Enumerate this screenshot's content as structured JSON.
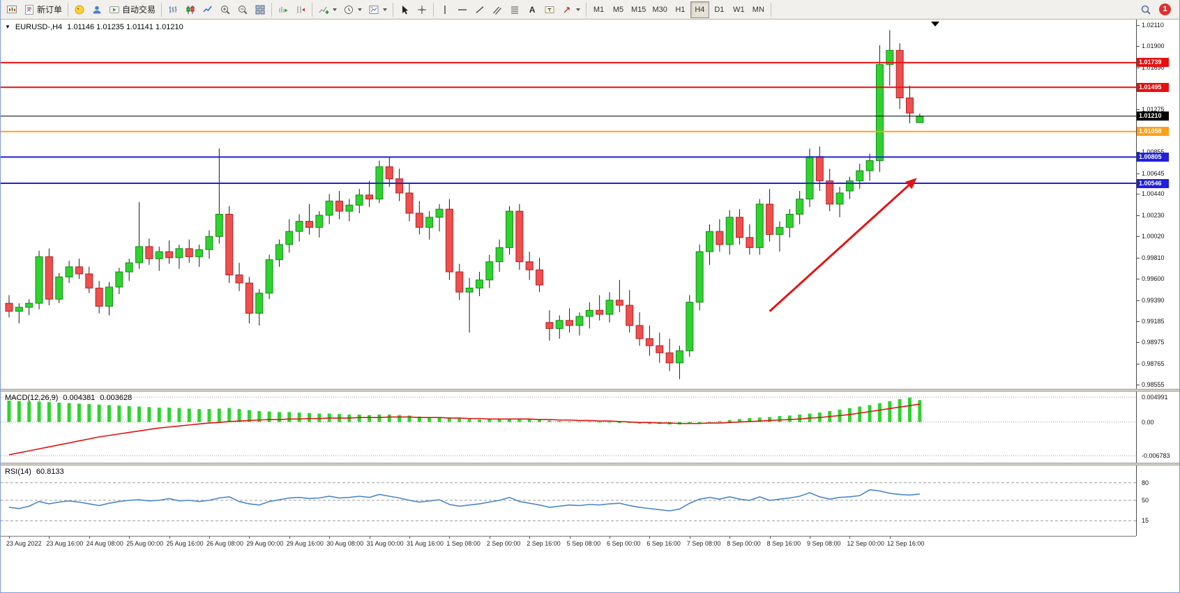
{
  "toolbar": {
    "new_order": "新订单",
    "auto_trading": "自动交易",
    "timeframe_labels": [
      "M1",
      "M5",
      "M15",
      "M30",
      "H1",
      "H4",
      "D1",
      "W1",
      "MN"
    ],
    "active_timeframe": "H4",
    "notification_badge": "1"
  },
  "chart_header": {
    "symbol_period": "EURUSD-,H4",
    "ohlc_text": "1.01146 1.01235 1.01141 1.01210"
  },
  "macd_header": {
    "label": "MACD(12,26,9)",
    "main": "0.004381",
    "signal": "0.003628"
  },
  "rsi_header": {
    "label": "RSI(14)",
    "value": "60.8133"
  },
  "chart_data": {
    "type": "candlestick",
    "symbol": "EURUSD-,H4",
    "ylim": [
      0.98555,
      1.0211
    ],
    "y_ticks": [
      1.0211,
      1.019,
      1.0169,
      1.0148,
      1.01275,
      1.01065,
      1.00855,
      1.00645,
      1.0044,
      1.0023,
      1.0002,
      0.9981,
      0.996,
      0.9939,
      0.99185,
      0.98975,
      0.98765,
      0.98555
    ],
    "x_labels": [
      "23 Aug 2022",
      "23 Aug 16:00",
      "24 Aug 08:00",
      "25 Aug 00:00",
      "25 Aug 16:00",
      "26 Aug 08:00",
      "29 Aug 00:00",
      "29 Aug 16:00",
      "30 Aug 08:00",
      "31 Aug 00:00",
      "31 Aug 16:00",
      "1 Sep 08:00",
      "2 Sep 00:00",
      "2 Sep 16:00",
      "5 Sep 08:00",
      "6 Sep 00:00",
      "6 Sep 16:00",
      "7 Sep 08:00",
      "8 Sep 00:00",
      "8 Sep 16:00",
      "9 Sep 08:00",
      "12 Sep 00:00",
      "12 Sep 16:00"
    ],
    "x_label_step": 4,
    "candles": [
      [
        0.9936,
        0.9944,
        0.9922,
        0.9928
      ],
      [
        0.9928,
        0.9936,
        0.9916,
        0.9932
      ],
      [
        0.9932,
        0.994,
        0.9924,
        0.9936
      ],
      [
        0.9936,
        0.9988,
        0.993,
        0.9982
      ],
      [
        0.9982,
        0.999,
        0.9934,
        0.994
      ],
      [
        0.994,
        0.9966,
        0.9936,
        0.9962
      ],
      [
        0.9962,
        0.9978,
        0.9956,
        0.9972
      ],
      [
        0.9972,
        0.998,
        0.996,
        0.9965
      ],
      [
        0.9965,
        0.9972,
        0.9946,
        0.9951
      ],
      [
        0.9951,
        0.9958,
        0.9926,
        0.9933
      ],
      [
        0.9933,
        0.9957,
        0.9924,
        0.9952
      ],
      [
        0.9952,
        0.9971,
        0.9945,
        0.9967
      ],
      [
        0.9967,
        0.998,
        0.9958,
        0.9976
      ],
      [
        0.9976,
        1.0036,
        0.997,
        0.9992
      ],
      [
        0.9992,
        1.0,
        0.9974,
        0.998
      ],
      [
        0.998,
        0.9992,
        0.9968,
        0.9987
      ],
      [
        0.9987,
        0.9998,
        0.9975,
        0.9981
      ],
      [
        0.9981,
        0.9994,
        0.997,
        0.999
      ],
      [
        0.999,
        0.9999,
        0.9976,
        0.9982
      ],
      [
        0.9982,
        0.9994,
        0.9972,
        0.9989
      ],
      [
        0.9989,
        1.0008,
        0.998,
        1.0002
      ],
      [
        1.0002,
        1.0089,
        0.9995,
        1.0024
      ],
      [
        1.0024,
        1.0032,
        0.9956,
        0.9964
      ],
      [
        0.9964,
        0.9976,
        0.9948,
        0.9956
      ],
      [
        0.9956,
        0.9962,
        0.9916,
        0.9926
      ],
      [
        0.9926,
        0.995,
        0.9914,
        0.9946
      ],
      [
        0.9946,
        0.9984,
        0.994,
        0.9979
      ],
      [
        0.9979,
        0.9999,
        0.9972,
        0.9994
      ],
      [
        0.9994,
        1.0019,
        0.9986,
        1.0007
      ],
      [
        1.0007,
        1.0024,
        0.9997,
        1.0017
      ],
      [
        1.0017,
        1.0034,
        1.0004,
        1.0011
      ],
      [
        1.0011,
        1.0027,
        1.0001,
        1.0023
      ],
      [
        1.0023,
        1.0044,
        1.0014,
        1.0037
      ],
      [
        1.0037,
        1.0047,
        1.0019,
        1.0027
      ],
      [
        1.0027,
        1.0039,
        1.0017,
        1.0033
      ],
      [
        1.0033,
        1.0049,
        1.0025,
        1.0043
      ],
      [
        1.0043,
        1.0057,
        1.0031,
        1.0039
      ],
      [
        1.0039,
        1.0077,
        1.0035,
        1.0071
      ],
      [
        1.0071,
        1.0081,
        1.0051,
        1.0059
      ],
      [
        1.0059,
        1.0069,
        1.0037,
        1.0045
      ],
      [
        1.0045,
        1.0055,
        1.0017,
        1.0025
      ],
      [
        1.0025,
        1.0037,
        1.0004,
        1.0011
      ],
      [
        1.0011,
        1.0027,
        0.9999,
        1.0021
      ],
      [
        1.0021,
        1.0034,
        1.0007,
        1.0029
      ],
      [
        1.0029,
        1.0039,
        0.9959,
        0.9967
      ],
      [
        0.9967,
        0.9975,
        0.9939,
        0.9947
      ],
      [
        0.9947,
        0.9961,
        0.9907,
        0.9951
      ],
      [
        0.9951,
        0.9967,
        0.9943,
        0.9959
      ],
      [
        0.9959,
        0.9984,
        0.9951,
        0.9977
      ],
      [
        0.9977,
        0.9999,
        0.9967,
        0.9991
      ],
      [
        0.9991,
        1.0032,
        0.9984,
        1.0027
      ],
      [
        1.0027,
        1.0034,
        0.9969,
        0.9977
      ],
      [
        0.9977,
        0.9987,
        0.9959,
        0.9969
      ],
      [
        0.9969,
        0.9981,
        0.9947,
        0.9954
      ],
      [
        0.9917,
        0.9929,
        0.9899,
        0.9911
      ],
      [
        0.9911,
        0.9924,
        0.9901,
        0.9919
      ],
      [
        0.9919,
        0.9931,
        0.9907,
        0.9914
      ],
      [
        0.9914,
        0.9927,
        0.9904,
        0.9923
      ],
      [
        0.9923,
        0.9937,
        0.9911,
        0.9929
      ],
      [
        0.9929,
        0.9944,
        0.9919,
        0.9925
      ],
      [
        0.9925,
        0.9947,
        0.9917,
        0.9939
      ],
      [
        0.9939,
        0.9959,
        0.9927,
        0.9934
      ],
      [
        0.9934,
        0.9949,
        0.9907,
        0.9914
      ],
      [
        0.9914,
        0.9927,
        0.9894,
        0.9901
      ],
      [
        0.9901,
        0.9914,
        0.9884,
        0.9894
      ],
      [
        0.9894,
        0.9907,
        0.9877,
        0.9887
      ],
      [
        0.9887,
        0.9901,
        0.9869,
        0.9877
      ],
      [
        0.9877,
        0.9894,
        0.9861,
        0.9889
      ],
      [
        0.9889,
        0.9944,
        0.9883,
        0.9937
      ],
      [
        0.9937,
        0.9994,
        0.9929,
        0.9987
      ],
      [
        0.9987,
        1.0014,
        0.9974,
        1.0007
      ],
      [
        1.0007,
        1.0019,
        0.9987,
        0.9994
      ],
      [
        0.9994,
        1.0028,
        0.9984,
        1.0021
      ],
      [
        1.0021,
        1.0029,
        0.9994,
        1.0001
      ],
      [
        1.0001,
        1.0014,
        0.9984,
        0.9991
      ],
      [
        0.9991,
        1.0039,
        0.9984,
        1.0034
      ],
      [
        1.0034,
        1.0049,
        0.9997,
        1.0004
      ],
      [
        1.0004,
        1.0017,
        0.9987,
        1.0011
      ],
      [
        1.0011,
        1.0029,
        1.0001,
        1.0024
      ],
      [
        1.0024,
        1.0047,
        1.0014,
        1.0039
      ],
      [
        1.0039,
        1.0089,
        1.0031,
        1.0081
      ],
      [
        1.0081,
        1.0091,
        1.0047,
        1.0057
      ],
      [
        1.0057,
        1.0069,
        1.0027,
        1.0034
      ],
      [
        1.0034,
        1.0051,
        1.0021,
        1.0045
      ],
      [
        1.0047,
        1.0061,
        1.0039,
        1.0057
      ],
      [
        1.0057,
        1.0074,
        1.0049,
        1.0067
      ],
      [
        1.0067,
        1.0084,
        1.0057,
        1.0077
      ],
      [
        1.0077,
        1.0191,
        1.0066,
        1.0172
      ],
      [
        1.0172,
        1.0206,
        1.0151,
        1.0186
      ],
      [
        1.0186,
        1.0193,
        1.0128,
        1.0139
      ],
      [
        1.0139,
        1.0151,
        1.0114,
        1.0124
      ],
      [
        1.01146,
        1.01235,
        1.01141,
        1.0121
      ]
    ],
    "price_lines": [
      {
        "price": 1.01739,
        "color": "#e80f0f",
        "width": 2,
        "badge": "1.01739"
      },
      {
        "price": 1.01495,
        "color": "#e80f0f",
        "width": 2,
        "badge": "1.01495"
      },
      {
        "price": 1.0121,
        "color": "#000000",
        "width": 1,
        "badge": "1.01210"
      },
      {
        "price": 1.01058,
        "color": "#ffa018",
        "width": 2,
        "badge": "1.01058"
      },
      {
        "price": 1.00805,
        "color": "#2020dd",
        "width": 2,
        "badge": "1.00805"
      },
      {
        "price": 1.00546,
        "color": "#2020dd",
        "width": 2,
        "badge": "1.00546"
      }
    ],
    "trend_arrow": {
      "from_index": 76,
      "from_price": 0.9928,
      "to_index": 90.5,
      "to_price": 1.0058,
      "color": "#e41414",
      "width": 3
    },
    "colors": {
      "up": "#2fd32f",
      "up_border": "#168a16",
      "down": "#ee4f4f",
      "down_border": "#b22222",
      "wick": "#1a1a1a",
      "macd_hist": "#2fd32f",
      "macd_signal": "#e01010",
      "rsi_line": "#4a86c8",
      "level_dash": "#9a9a9a"
    },
    "macd": {
      "ylim": [
        -0.006783,
        0.004991
      ],
      "ticks": [
        0.004991,
        0,
        -0.006783
      ],
      "tick_labels": [
        "0.004991",
        "0.00",
        "-0.006783"
      ],
      "histogram": [
        0.0043,
        0.0042,
        0.0041,
        0.0041,
        0.004,
        0.0039,
        0.0038,
        0.0037,
        0.0036,
        0.0035,
        0.0034,
        0.0033,
        0.0032,
        0.0031,
        0.003,
        0.0029,
        0.0029,
        0.0028,
        0.0027,
        0.0026,
        0.0026,
        0.0027,
        0.0028,
        0.0026,
        0.0024,
        0.0022,
        0.0021,
        0.002,
        0.002,
        0.0019,
        0.0018,
        0.0017,
        0.0017,
        0.0016,
        0.0015,
        0.0015,
        0.0014,
        0.0015,
        0.0015,
        0.0014,
        0.0013,
        0.0011,
        0.001,
        0.001,
        0.0009,
        0.0007,
        0.0006,
        0.0005,
        0.0005,
        0.0006,
        0.0007,
        0.0007,
        0.0006,
        0.0005,
        0.0003,
        0.0002,
        0.0001,
        0.0001,
        0.0001,
        0.0,
        -0.0001,
        -0.0002,
        -0.0002,
        -0.0003,
        -0.0004,
        -0.0004,
        -0.0005,
        -0.0005,
        -0.0004,
        -0.0002,
        0.0,
        0.0002,
        0.0004,
        0.0006,
        0.0008,
        0.0009,
        0.001,
        0.0012,
        0.0013,
        0.0015,
        0.0017,
        0.0019,
        0.0022,
        0.0025,
        0.0028,
        0.0031,
        0.0034,
        0.0038,
        0.0042,
        0.0046,
        0.0049,
        0.0044
      ],
      "signal": [
        -0.0066,
        -0.0062,
        -0.0058,
        -0.0054,
        -0.005,
        -0.0046,
        -0.0042,
        -0.0038,
        -0.0034,
        -0.003,
        -0.0027,
        -0.0024,
        -0.0021,
        -0.0018,
        -0.0015,
        -0.0012,
        -0.001,
        -0.0008,
        -0.0006,
        -0.0004,
        -0.0002,
        -0.0001,
        0.0001,
        0.0002,
        0.0003,
        0.0004,
        0.0005,
        0.0005,
        0.0006,
        0.0006,
        0.0007,
        0.0007,
        0.0008,
        0.0008,
        0.0008,
        0.0009,
        0.0009,
        0.0009,
        0.001,
        0.001,
        0.001,
        0.0009,
        0.0009,
        0.0009,
        0.0008,
        0.0008,
        0.0007,
        0.0007,
        0.0006,
        0.0006,
        0.0006,
        0.0006,
        0.0006,
        0.0005,
        0.0005,
        0.0004,
        0.0004,
        0.0003,
        0.0003,
        0.0002,
        0.0002,
        0.0001,
        0.0,
        -0.0001,
        -0.0001,
        -0.0002,
        -0.0002,
        -0.0003,
        -0.0003,
        -0.0003,
        -0.0002,
        -0.0002,
        -0.0001,
        0.0,
        0.0001,
        0.0002,
        0.0003,
        0.0004,
        0.0005,
        0.0006,
        0.0008,
        0.0009,
        0.0011,
        0.0013,
        0.0015,
        0.0018,
        0.0021,
        0.0024,
        0.0027,
        0.003,
        0.0033,
        0.0036
      ]
    },
    "rsi": {
      "ylim": [
        0,
        100
      ],
      "levels": [
        80,
        50,
        15
      ],
      "values": [
        38,
        36,
        40,
        48,
        44,
        47,
        49,
        47,
        44,
        41,
        45,
        48,
        50,
        51,
        49,
        50,
        53,
        49,
        50,
        48,
        50,
        54,
        56,
        48,
        44,
        42,
        48,
        51,
        54,
        55,
        53,
        54,
        57,
        54,
        55,
        57,
        55,
        60,
        57,
        54,
        50,
        47,
        49,
        51,
        43,
        40,
        42,
        44,
        47,
        50,
        55,
        48,
        45,
        42,
        38,
        40,
        42,
        41,
        43,
        42,
        44,
        45,
        41,
        38,
        36,
        34,
        32,
        35,
        45,
        52,
        55,
        52,
        56,
        52,
        50,
        56,
        50,
        52,
        54,
        57,
        63,
        56,
        52,
        55,
        56,
        58,
        68,
        66,
        62,
        60,
        59,
        60.8
      ]
    }
  }
}
